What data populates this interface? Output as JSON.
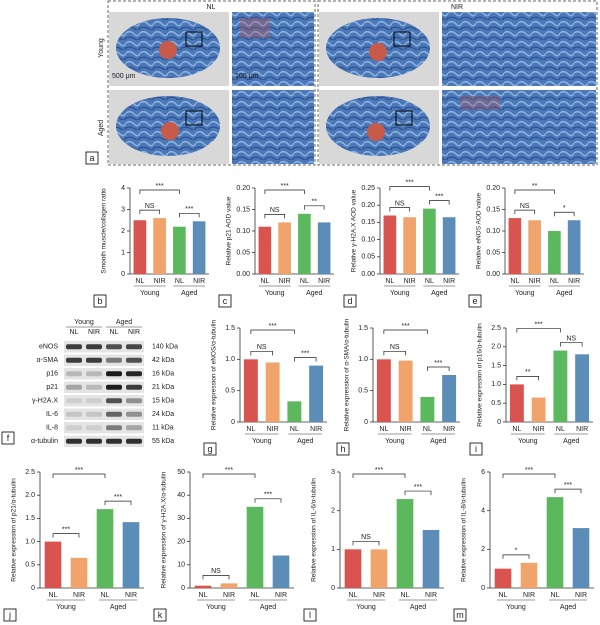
{
  "panel_a": {
    "label": "a",
    "columns": [
      "NL",
      "NIR"
    ],
    "rows": [
      "Young",
      "Aged"
    ],
    "scale_bars": [
      "500 μm",
      "100 μm"
    ]
  },
  "panel_f": {
    "label": "f",
    "groups": [
      "Young",
      "Aged"
    ],
    "lanes": [
      "NL",
      "NIR",
      "NL",
      "NIR"
    ],
    "proteins": [
      {
        "name": "eNOS",
        "size": "140 kDa"
      },
      {
        "name": "α-SMA",
        "size": "42 kDa"
      },
      {
        "name": "p16",
        "size": "16 kDa"
      },
      {
        "name": "p21",
        "size": "21 kDa"
      },
      {
        "name": "γ-H2A.X",
        "size": "15 kDa"
      },
      {
        "name": "IL-6",
        "size": "24 kDa"
      },
      {
        "name": "IL-8",
        "size": "11 kDa"
      },
      {
        "name": "α-tubulin",
        "size": "55 kDa"
      }
    ]
  },
  "chart_data": [
    {
      "type": "bar",
      "panel": "b",
      "ylabel": "Smooth muscle/collagen ratio",
      "categories": [
        "NL",
        "NIR",
        "NL",
        "NIR"
      ],
      "groups": [
        "Young",
        "Aged"
      ],
      "colors": [
        "#d9534f",
        "#f0a36b",
        "#5cb85c",
        "#5b8db8"
      ],
      "values": [
        2.5,
        2.6,
        2.2,
        2.45
      ],
      "ylim": [
        0,
        4
      ],
      "yticks": [
        0,
        1,
        2,
        3,
        4
      ],
      "significance": [
        {
          "pair": [
            0,
            2
          ],
          "label": "***"
        },
        {
          "pair": [
            0,
            1
          ],
          "label": "NS"
        },
        {
          "pair": [
            2,
            3
          ],
          "label": "***"
        }
      ]
    },
    {
      "type": "bar",
      "panel": "c",
      "ylabel": "Relative p21 AOD value",
      "categories": [
        "NL",
        "NIR",
        "NL",
        "NIR"
      ],
      "groups": [
        "Young",
        "Aged"
      ],
      "colors": [
        "#d9534f",
        "#f0a36b",
        "#5cb85c",
        "#5b8db8"
      ],
      "values": [
        0.11,
        0.12,
        0.14,
        0.12
      ],
      "ylim": [
        0,
        0.2
      ],
      "yticks": [
        {
          "value": 0,
          "label": "0.00"
        },
        0.05,
        {
          "value": 0.1,
          "label": "0.10"
        },
        0.15,
        {
          "value": 0.2,
          "label": "0.20"
        }
      ],
      "significance": [
        {
          "pair": [
            0,
            2
          ],
          "label": "***"
        },
        {
          "pair": [
            0,
            1
          ],
          "label": "NS"
        },
        {
          "pair": [
            2,
            3
          ],
          "label": "**"
        }
      ]
    },
    {
      "type": "bar",
      "panel": "d",
      "ylabel": "Relative γ-H2A.X AOD value",
      "categories": [
        "NL",
        "NIR",
        "NL",
        "NIR"
      ],
      "groups": [
        "Young",
        "Aged"
      ],
      "colors": [
        "#d9534f",
        "#f0a36b",
        "#5cb85c",
        "#5b8db8"
      ],
      "values": [
        0.17,
        0.165,
        0.19,
        0.165
      ],
      "ylim": [
        0,
        0.25
      ],
      "yticks": [
        {
          "value": 0,
          "label": "0.00"
        },
        0.05,
        {
          "value": 0.1,
          "label": "0.10"
        },
        0.15,
        {
          "value": 0.2,
          "label": "0.20"
        },
        0.25
      ],
      "significance": [
        {
          "pair": [
            0,
            2
          ],
          "label": "***"
        },
        {
          "pair": [
            0,
            1
          ],
          "label": "NS"
        },
        {
          "pair": [
            2,
            3
          ],
          "label": "***"
        }
      ]
    },
    {
      "type": "bar",
      "panel": "e",
      "ylabel": "Relative eNOS AOD value",
      "categories": [
        "NL",
        "NIR",
        "NL",
        "NIR"
      ],
      "groups": [
        "Young",
        "Aged"
      ],
      "colors": [
        "#d9534f",
        "#f0a36b",
        "#5cb85c",
        "#5b8db8"
      ],
      "values": [
        0.13,
        0.125,
        0.1,
        0.125
      ],
      "ylim": [
        0,
        0.2
      ],
      "yticks": [
        {
          "value": 0,
          "label": "0.00"
        },
        0.05,
        {
          "value": 0.1,
          "label": "0.10"
        },
        0.15,
        {
          "value": 0.2,
          "label": "0.20"
        }
      ],
      "significance": [
        {
          "pair": [
            0,
            2
          ],
          "label": "**"
        },
        {
          "pair": [
            0,
            1
          ],
          "label": "NS"
        },
        {
          "pair": [
            2,
            3
          ],
          "label": "*"
        }
      ]
    },
    {
      "type": "bar",
      "panel": "g",
      "ylabel": "Relative expression of eNOS/α-tubulin",
      "categories": [
        "NL",
        "NIR",
        "NL",
        "NIR"
      ],
      "groups": [
        "Young",
        "Aged"
      ],
      "colors": [
        "#d9534f",
        "#f0a36b",
        "#5cb85c",
        "#5b8db8"
      ],
      "values": [
        1.0,
        0.95,
        0.33,
        0.9
      ],
      "ylim": [
        0,
        1.5
      ],
      "yticks": [
        0,
        0.5,
        {
          "value": 1,
          "label": "1.0"
        },
        1.5
      ],
      "significance": [
        {
          "pair": [
            0,
            2
          ],
          "label": "***"
        },
        {
          "pair": [
            0,
            1
          ],
          "label": "NS"
        },
        {
          "pair": [
            2,
            3
          ],
          "label": "***"
        }
      ]
    },
    {
      "type": "bar",
      "panel": "h",
      "ylabel": "Relative expression of α-SMA/α-tubulin",
      "categories": [
        "NL",
        "NIR",
        "NL",
        "NIR"
      ],
      "groups": [
        "Young",
        "Aged"
      ],
      "colors": [
        "#d9534f",
        "#f0a36b",
        "#5cb85c",
        "#5b8db8"
      ],
      "values": [
        1.0,
        0.98,
        0.4,
        0.75
      ],
      "ylim": [
        0,
        1.5
      ],
      "yticks": [
        0,
        0.5,
        {
          "value": 1,
          "label": "1.0"
        },
        1.5
      ],
      "significance": [
        {
          "pair": [
            0,
            2
          ],
          "label": "***"
        },
        {
          "pair": [
            0,
            1
          ],
          "label": "NS"
        },
        {
          "pair": [
            2,
            3
          ],
          "label": "***"
        }
      ]
    },
    {
      "type": "bar",
      "panel": "i",
      "ylabel": "Relative expression of p16/α-tubulin",
      "categories": [
        "NL",
        "NIR",
        "NL",
        "NIR"
      ],
      "groups": [
        "Young",
        "Aged"
      ],
      "colors": [
        "#d9534f",
        "#f0a36b",
        "#5cb85c",
        "#5b8db8"
      ],
      "values": [
        1.0,
        0.65,
        1.9,
        1.8
      ],
      "ylim": [
        0,
        2.5
      ],
      "yticks": [
        0,
        0.5,
        {
          "value": 1,
          "label": "1.0"
        },
        1.5,
        {
          "value": 2,
          "label": "2.0"
        },
        2.5
      ],
      "significance": [
        {
          "pair": [
            0,
            2
          ],
          "label": "***"
        },
        {
          "pair": [
            0,
            1
          ],
          "label": "**"
        },
        {
          "pair": [
            2,
            3
          ],
          "label": "NS"
        }
      ]
    },
    {
      "type": "bar",
      "panel": "j",
      "ylabel": "Relative expression of p21/α-tubulin",
      "categories": [
        "NL",
        "NIR",
        "NL",
        "NIR"
      ],
      "groups": [
        "Young",
        "Aged"
      ],
      "colors": [
        "#d9534f",
        "#f0a36b",
        "#5cb85c",
        "#5b8db8"
      ],
      "values": [
        1.0,
        0.65,
        1.7,
        1.42
      ],
      "ylim": [
        0,
        2.5
      ],
      "yticks": [
        0,
        0.5,
        {
          "value": 1,
          "label": "1.0"
        },
        1.5,
        {
          "value": 2,
          "label": "2.0"
        },
        2.5
      ],
      "significance": [
        {
          "pair": [
            0,
            2
          ],
          "label": "***"
        },
        {
          "pair": [
            0,
            1
          ],
          "label": "***"
        },
        {
          "pair": [
            2,
            3
          ],
          "label": "***"
        }
      ]
    },
    {
      "type": "bar",
      "panel": "k",
      "ylabel": "Relative expression of γ-H2A.X/α-tubulin",
      "categories": [
        "NL",
        "NIR",
        "NL",
        "NIR"
      ],
      "groups": [
        "Young",
        "Aged"
      ],
      "colors": [
        "#d9534f",
        "#f0a36b",
        "#5cb85c",
        "#5b8db8"
      ],
      "values": [
        1,
        2,
        35,
        14
      ],
      "ylim": [
        0,
        50
      ],
      "yticks": [
        0,
        10,
        20,
        30,
        40,
        50
      ],
      "significance": [
        {
          "pair": [
            0,
            2
          ],
          "label": "***"
        },
        {
          "pair": [
            0,
            1
          ],
          "label": "NS"
        },
        {
          "pair": [
            2,
            3
          ],
          "label": "***"
        }
      ]
    },
    {
      "type": "bar",
      "panel": "l",
      "ylabel": "Relative expression of IL-6/α-tubulin",
      "categories": [
        "NL",
        "NIR",
        "NL",
        "NIR"
      ],
      "groups": [
        "Young",
        "Aged"
      ],
      "colors": [
        "#d9534f",
        "#f0a36b",
        "#5cb85c",
        "#5b8db8"
      ],
      "values": [
        1.0,
        1.0,
        2.3,
        1.5
      ],
      "ylim": [
        0,
        3
      ],
      "yticks": [
        0,
        1,
        2,
        3
      ],
      "significance": [
        {
          "pair": [
            0,
            2
          ],
          "label": "***"
        },
        {
          "pair": [
            0,
            1
          ],
          "label": "NS"
        },
        {
          "pair": [
            2,
            3
          ],
          "label": "***"
        }
      ]
    },
    {
      "type": "bar",
      "panel": "m",
      "ylabel": "Relative expression of IL-8/α-tubulin",
      "categories": [
        "NL",
        "NIR",
        "NL",
        "NIR"
      ],
      "groups": [
        "Young",
        "Aged"
      ],
      "colors": [
        "#d9534f",
        "#f0a36b",
        "#5cb85c",
        "#5b8db8"
      ],
      "values": [
        1.0,
        1.3,
        4.7,
        3.1
      ],
      "ylim": [
        0,
        6
      ],
      "yticks": [
        0,
        2,
        4,
        6
      ],
      "significance": [
        {
          "pair": [
            0,
            2
          ],
          "label": "***"
        },
        {
          "pair": [
            0,
            1
          ],
          "label": "*"
        },
        {
          "pair": [
            2,
            3
          ],
          "label": "***"
        }
      ]
    }
  ]
}
